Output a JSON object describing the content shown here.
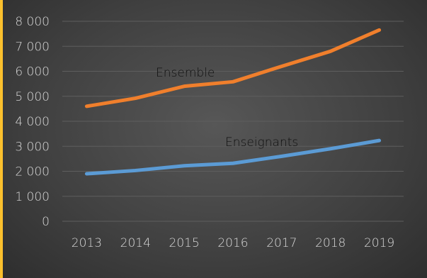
{
  "chart_data": {
    "type": "line",
    "title": "",
    "xlabel": "",
    "ylabel": "",
    "categories": [
      "2013",
      "2014",
      "2015",
      "2016",
      "2017",
      "2018",
      "2019"
    ],
    "ylim": [
      0,
      8000
    ],
    "yticks": [
      0,
      1000,
      2000,
      3000,
      4000,
      5000,
      6000,
      7000,
      8000
    ],
    "ytick_labels": [
      "0",
      "1 000",
      "2 000",
      "3 000",
      "4 000",
      "5 000",
      "6 000",
      "7 000",
      "8 000"
    ],
    "grid": true,
    "legend": "none",
    "series": [
      {
        "name": "Ensemble",
        "color": "#f07f2c",
        "values": [
          4600,
          4920,
          5400,
          5580,
          6200,
          6800,
          7650
        ]
      },
      {
        "name": "Enseignants",
        "color": "#5b9bd5",
        "values": [
          1900,
          2030,
          2220,
          2320,
          2600,
          2900,
          3230
        ]
      }
    ]
  }
}
